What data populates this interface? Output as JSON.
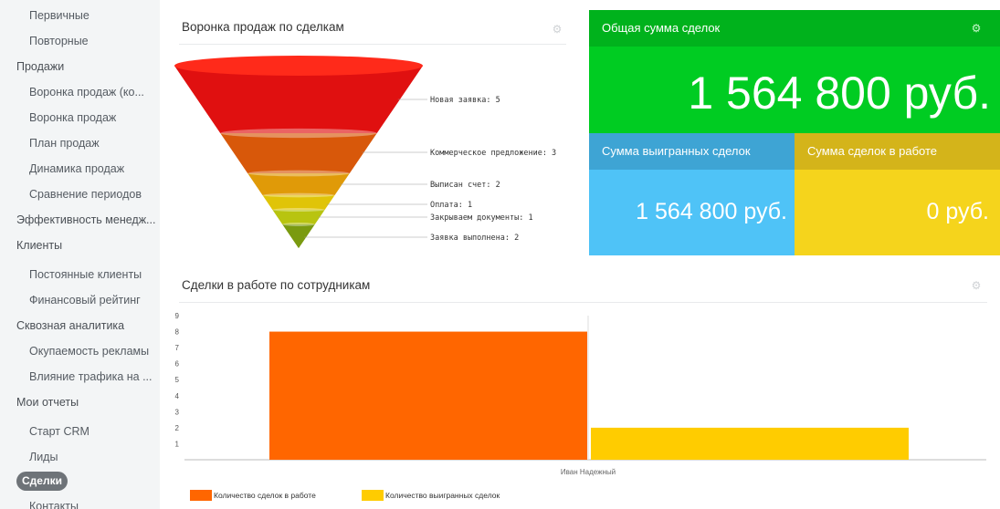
{
  "sidebar": {
    "items": [
      {
        "label": "Первичные",
        "level": 2
      },
      {
        "label": "Повторные",
        "level": 2
      },
      {
        "label": "Продажи",
        "level": 1
      },
      {
        "label": "Воронка продаж (ко...",
        "level": 2
      },
      {
        "label": "Воронка продаж",
        "level": 2
      },
      {
        "label": "План продаж",
        "level": 2
      },
      {
        "label": "Динамика продаж",
        "level": 2
      },
      {
        "label": "Сравнение периодов",
        "level": 2
      },
      {
        "label": "Эффективность менедж...",
        "level": 1
      },
      {
        "label": "Клиенты",
        "level": 1
      },
      {
        "label": "Постоянные клиенты",
        "level": 2
      },
      {
        "label": "Финансовый рейтинг",
        "level": 2
      },
      {
        "label": "Сквозная аналитика",
        "level": 1
      },
      {
        "label": "Окупаемость рекламы",
        "level": 2
      },
      {
        "label": "Влияние трафика на ...",
        "level": 2
      },
      {
        "label": "Мои отчеты",
        "level": 1
      },
      {
        "label": "Старт CRM",
        "level": 2
      },
      {
        "label": "Лиды",
        "level": 2
      },
      {
        "label": "Сделки",
        "level": 1,
        "active": true
      },
      {
        "label": "Контакты",
        "level": 2
      }
    ]
  },
  "funnel": {
    "title": "Воронка продаж по сделкам",
    "stages": [
      {
        "label": "Новая заявка: 5",
        "color": "#e01010"
      },
      {
        "label": "Коммерческое предложение: 3",
        "color": "#d8580a"
      },
      {
        "label": "Выписан счет: 2",
        "color": "#e09a08"
      },
      {
        "label": "Оплата: 1",
        "color": "#e0c408"
      },
      {
        "label": "Закрываем документы: 1",
        "color": "#b8c410"
      },
      {
        "label": "Заявка выполнена: 2",
        "color": "#7a9a10"
      }
    ]
  },
  "totals": {
    "title": "Общая сумма сделок",
    "value": "1 564 800 руб.",
    "color": "#00cc22",
    "head_color": "#00b21c"
  },
  "won": {
    "title": "Сумма выигранных сделок",
    "value": "1 564 800 руб.",
    "color": "#4fc3f7",
    "head_color": "#3ea4d4"
  },
  "in_work": {
    "title": "Сумма сделок в работе",
    "value": "0 руб.",
    "color": "#f5d41c",
    "head_color": "#d4b41a"
  },
  "employees": {
    "title": "Сделки в работе по сотрудникам"
  },
  "chart_data": {
    "type": "bar",
    "categories": [
      "Иван Надежный"
    ],
    "series": [
      {
        "name": "Количество сделок в работе",
        "values": [
          8
        ],
        "color": "#ff6600"
      },
      {
        "name": "Количество выигранных сделок",
        "values": [
          2
        ],
        "color": "#ffcc00"
      }
    ],
    "ylim": [
      0,
      9
    ],
    "yticks": [
      1,
      2,
      3,
      4,
      5,
      6,
      7,
      8,
      9
    ],
    "legend": "bottom-left",
    "grid": false
  }
}
